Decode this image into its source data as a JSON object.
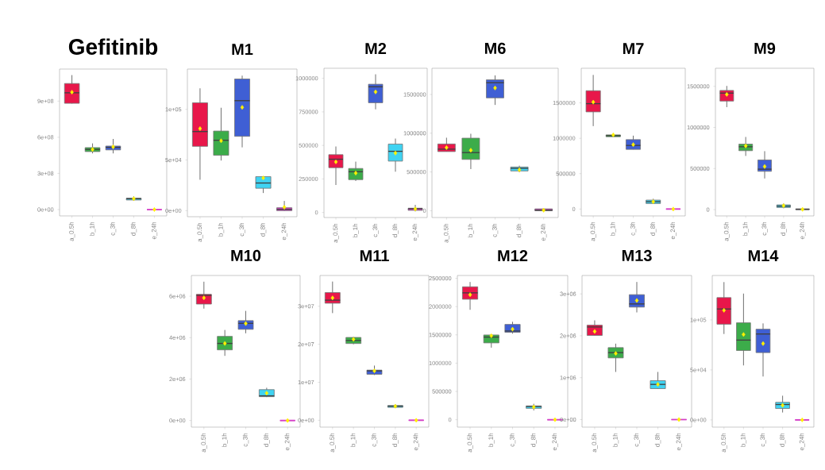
{
  "chart_data": [
    {
      "type": "box",
      "title": "Gefitinib",
      "categories": [
        "a_0.5h",
        "b_1h",
        "c_3h",
        "d_8h",
        "e_24h"
      ],
      "colors": [
        "#e8174a",
        "#3cac4a",
        "#3f5fd4",
        "#3fd3f2",
        "#d43fc6"
      ],
      "ylim": [
        -53000000,
        1166000000
      ],
      "yticks": [
        {
          "value": 0,
          "label": "0e+00"
        },
        {
          "value": 300000000,
          "label": "3e+08"
        },
        {
          "value": 600000000,
          "label": "6e+08"
        },
        {
          "value": 900000000,
          "label": "9e+08"
        }
      ],
      "boxes": [
        {
          "low": 880000000,
          "q1": 882000000,
          "median": 969000000,
          "q3": 1046000000,
          "high": 1116000000,
          "mean": 974000000
        },
        {
          "low": 466000000,
          "q1": 481000000,
          "median": 499000000,
          "q3": 514000000,
          "high": 549000000,
          "mean": 499000000
        },
        {
          "low": 466000000,
          "q1": 495000000,
          "median": 516000000,
          "q3": 527000000,
          "high": 586000000,
          "mean": 520000000
        },
        {
          "low": 72000000,
          "q1": 79000000,
          "median": 90000000,
          "q3": 94000000,
          "high": 110000000,
          "mean": 90000000
        },
        {
          "low": 0,
          "q1": 0,
          "median": 0,
          "q3": 0,
          "high": 0,
          "mean": 0
        }
      ]
    },
    {
      "type": "box",
      "title": "M1",
      "categories": [
        "a_0.5h",
        "b_1h",
        "c_3h",
        "d_8h",
        "e_24h"
      ],
      "colors": [
        "#e8174a",
        "#3cac4a",
        "#3f5fd4",
        "#3fd3f2",
        "#d43fc6"
      ],
      "ylim": [
        -6000,
        139800
      ],
      "yticks": [
        {
          "value": 0,
          "label": "0e+00"
        },
        {
          "value": 50000,
          "label": "5e+04"
        },
        {
          "value": 100000,
          "label": "1e+05"
        }
      ],
      "boxes": [
        {
          "low": 30500,
          "q1": 63500,
          "median": 78100,
          "q3": 106500,
          "high": 120800,
          "mean": 81000
        },
        {
          "low": 49500,
          "q1": 54700,
          "median": 69500,
          "q3": 78600,
          "high": 101600,
          "mean": 69000
        },
        {
          "low": 62500,
          "q1": 73400,
          "median": 108600,
          "q3": 130000,
          "high": 133300,
          "mean": 102000
        },
        {
          "low": 17400,
          "q1": 22100,
          "median": 27300,
          "q3": 33600,
          "high": 33600,
          "mean": 32300
        },
        {
          "low": 0,
          "q1": 0,
          "median": 1300,
          "q3": 2900,
          "high": 9600,
          "mean": 3400
        }
      ]
    },
    {
      "type": "box",
      "title": "M2",
      "categories": [
        "a_0.5h",
        "b_1h",
        "c_3h",
        "d_8h",
        "e_24h"
      ],
      "colors": [
        "#e8174a",
        "#3cac4a",
        "#3f5fd4",
        "#3fd3f2",
        "#d43fc6"
      ],
      "ylim": [
        -37500,
        1075000
      ],
      "yticks": [
        0,
        250000,
        500000,
        750000,
        1000000
      ],
      "boxes": [
        {
          "low": 205000,
          "q1": 334000,
          "median": 397000,
          "q3": 431000,
          "high": 492000,
          "mean": 377000
        },
        {
          "low": 235000,
          "q1": 245000,
          "median": 304000,
          "q3": 328000,
          "high": 379000,
          "mean": 294000
        },
        {
          "low": 769000,
          "q1": 818000,
          "median": 937000,
          "q3": 956000,
          "high": 1030000,
          "mean": 899000
        },
        {
          "low": 304000,
          "q1": 383000,
          "median": 456000,
          "q3": 510000,
          "high": 551000,
          "mean": 443000
        },
        {
          "low": 8000,
          "q1": 16000,
          "median": 28000,
          "q3": 32000,
          "high": 57000,
          "mean": 26000
        }
      ]
    },
    {
      "type": "box",
      "title": "M6",
      "categories": [
        "a_0.5h",
        "b_1h",
        "c_3h",
        "d_8h",
        "e_24h"
      ],
      "colors": [
        "#e8174a",
        "#3cac4a",
        "#3f5fd4",
        "#3fd3f2",
        "#d43fc6"
      ],
      "ylim": [
        -88000,
        1838000
      ],
      "yticks": [
        0,
        500000,
        1000000,
        1500000
      ],
      "boxes": [
        {
          "low": 763000,
          "q1": 763000,
          "median": 794000,
          "q3": 861000,
          "high": 942000,
          "mean": 814000
        },
        {
          "low": 537000,
          "q1": 662000,
          "median": 750000,
          "q3": 936000,
          "high": 993000,
          "mean": 780000
        },
        {
          "low": 1365000,
          "q1": 1456000,
          "median": 1652000,
          "q3": 1689000,
          "high": 1746000,
          "mean": 1584000
        },
        {
          "low": 497000,
          "q1": 513000,
          "median": 547000,
          "q3": 564000,
          "high": 581000,
          "mean": 527000
        },
        {
          "low": 0,
          "q1": 0,
          "median": 7000,
          "q3": 24000,
          "high": 24000,
          "mean": 7000
        }
      ]
    },
    {
      "type": "box",
      "title": "M7",
      "categories": [
        "a_0.5h",
        "b_1h",
        "c_3h",
        "d_8h",
        "e_24h"
      ],
      "colors": [
        "#e8174a",
        "#3cac4a",
        "#3f5fd4",
        "#3fd3f2",
        "#d43fc6"
      ],
      "ylim": [
        -97000,
        1989000
      ],
      "yticks": [
        0,
        500000,
        1000000,
        1500000
      ],
      "boxes": [
        {
          "low": 1172000,
          "q1": 1373000,
          "median": 1489000,
          "q3": 1672000,
          "high": 1895000,
          "mean": 1511000
        },
        {
          "low": 1022000,
          "q1": 1022000,
          "median": 1037000,
          "q3": 1048000,
          "high": 1048000,
          "mean": 1048000
        },
        {
          "low": 843000,
          "q1": 843000,
          "median": 899000,
          "q3": 981000,
          "high": 1037000,
          "mean": 910000
        },
        {
          "low": 71000,
          "q1": 78000,
          "median": 104000,
          "q3": 127000,
          "high": 146000,
          "mean": 104000
        },
        {
          "low": 0,
          "q1": 0,
          "median": 0,
          "q3": 0,
          "high": 0,
          "mean": 0
        }
      ]
    },
    {
      "type": "box",
      "title": "M9",
      "categories": [
        "a_0.5h",
        "b_1h",
        "c_3h",
        "d_8h",
        "e_24h"
      ],
      "colors": [
        "#e8174a",
        "#3cac4a",
        "#3f5fd4",
        "#3fd3f2",
        "#d43fc6"
      ],
      "ylim": [
        -77000,
        1720000
      ],
      "yticks": [
        0,
        500000,
        1000000,
        1500000
      ],
      "boxes": [
        {
          "low": 1247000,
          "q1": 1321000,
          "median": 1418000,
          "q3": 1450000,
          "high": 1505000,
          "mean": 1402000
        },
        {
          "low": 653000,
          "q1": 717000,
          "median": 765000,
          "q3": 797000,
          "high": 884000,
          "mean": 775000
        },
        {
          "low": 379000,
          "q1": 466000,
          "median": 492000,
          "q3": 604000,
          "high": 711000,
          "mean": 524000
        },
        {
          "low": 16000,
          "q1": 26000,
          "median": 42000,
          "q3": 58000,
          "high": 74000,
          "mean": 48000
        },
        {
          "low": 0,
          "q1": 0,
          "median": 3000,
          "q3": 10000,
          "high": 10000,
          "mean": 3000
        }
      ]
    },
    {
      "type": "box",
      "title": "M10",
      "categories": [
        "a_0.5h",
        "b_1h",
        "c_3h",
        "d_8h",
        "e_24h"
      ],
      "colors": [
        "#e8174a",
        "#3cac4a",
        "#3f5fd4",
        "#3fd3f2",
        "#d43fc6"
      ],
      "ylim": [
        -320000,
        7000000
      ],
      "yticks": [
        {
          "value": 0,
          "label": "0e+00"
        },
        {
          "value": 2000000,
          "label": "2e+06"
        },
        {
          "value": 4000000,
          "label": "4e+06"
        },
        {
          "value": 6000000,
          "label": "6e+06"
        }
      ],
      "boxes": [
        {
          "low": 5400000,
          "q1": 5620000,
          "median": 6040000,
          "q3": 6090000,
          "high": 6700000,
          "mean": 5920000
        },
        {
          "low": 3120000,
          "q1": 3410000,
          "median": 3720000,
          "q3": 4060000,
          "high": 4370000,
          "mean": 3720000
        },
        {
          "low": 4210000,
          "q1": 4400000,
          "median": 4690000,
          "q3": 4820000,
          "high": 5290000,
          "mean": 4680000
        },
        {
          "low": 1130000,
          "q1": 1150000,
          "median": 1190000,
          "q3": 1490000,
          "high": 1580000,
          "mean": 1320000
        },
        {
          "low": 0,
          "q1": 0,
          "median": 0,
          "q3": 0,
          "high": 0,
          "mean": 0
        }
      ]
    },
    {
      "type": "box",
      "title": "M11",
      "categories": [
        "a_0.5h",
        "b_1h",
        "c_3h",
        "d_8h",
        "e_24h"
      ],
      "colors": [
        "#e8174a",
        "#3cac4a",
        "#3f5fd4",
        "#3fd3f2",
        "#d43fc6"
      ],
      "ylim": [
        -1800000,
        38100000
      ],
      "yticks": [
        {
          "value": 0,
          "label": "0e+00"
        },
        {
          "value": 10000000,
          "label": "1e+07"
        },
        {
          "value": 20000000,
          "label": "2e+07"
        },
        {
          "value": 30000000,
          "label": "3e+07"
        }
      ],
      "boxes": [
        {
          "low": 28200000,
          "q1": 30800000,
          "median": 31600000,
          "q3": 33600000,
          "high": 36500000,
          "mean": 32200000
        },
        {
          "low": 20000000,
          "q1": 20200000,
          "median": 21000000,
          "q3": 21800000,
          "high": 21900000,
          "mean": 21300000
        },
        {
          "low": 11900000,
          "q1": 12100000,
          "median": 13000000,
          "q3": 13200000,
          "high": 14400000,
          "mean": 13000000
        },
        {
          "low": 3200000,
          "q1": 3400000,
          "median": 3700000,
          "q3": 3900000,
          "high": 4200000,
          "mean": 3700000
        },
        {
          "low": 0,
          "q1": 0,
          "median": 0,
          "q3": 0,
          "high": 0,
          "mean": 0
        }
      ]
    },
    {
      "type": "box",
      "title": "M12",
      "categories": [
        "a_0.5h",
        "b_1h",
        "c_3h",
        "d_8h",
        "e_24h"
      ],
      "colors": [
        "#e8174a",
        "#3cac4a",
        "#3f5fd4",
        "#3fd3f2",
        "#d43fc6"
      ],
      "ylim": [
        -131000,
        2550000
      ],
      "yticks": [
        0,
        500000,
        1000000,
        1500000,
        2000000,
        2500000
      ],
      "boxes": [
        {
          "low": 1943000,
          "q1": 2130000,
          "median": 2243000,
          "q3": 2350000,
          "high": 2435000,
          "mean": 2210000
        },
        {
          "low": 1274000,
          "q1": 1358000,
          "median": 1461000,
          "q3": 1498000,
          "high": 1498000,
          "mean": 1484000
        },
        {
          "low": 1522000,
          "q1": 1545000,
          "median": 1568000,
          "q3": 1685000,
          "high": 1732000,
          "mean": 1601000
        },
        {
          "low": 164000,
          "q1": 201000,
          "median": 234000,
          "q3": 243000,
          "high": 281000,
          "mean": 225000
        },
        {
          "low": 0,
          "q1": 0,
          "median": 0,
          "q3": 0,
          "high": 0,
          "mean": 0
        }
      ]
    },
    {
      "type": "box",
      "title": "M13",
      "categories": [
        "a_0.5h",
        "b_1h",
        "c_3h",
        "d_8h",
        "e_24h"
      ],
      "colors": [
        "#e8174a",
        "#3cac4a",
        "#3f5fd4",
        "#3fd3f2",
        "#d43fc6"
      ],
      "ylim": [
        -180000,
        3440000
      ],
      "yticks": [
        {
          "value": 0,
          "label": "0e+00"
        },
        {
          "value": 1000000,
          "label": "1e+06"
        },
        {
          "value": 2000000,
          "label": "2e+06"
        },
        {
          "value": 3000000,
          "label": "3e+06"
        }
      ],
      "boxes": [
        {
          "low": 2009000,
          "q1": 2009000,
          "median": 2211000,
          "q3": 2255000,
          "high": 2369000,
          "mean": 2104000
        },
        {
          "low": 1137000,
          "q1": 1472000,
          "median": 1598000,
          "q3": 1718000,
          "high": 1813000,
          "mean": 1579000
        },
        {
          "low": 2558000,
          "q1": 2685000,
          "median": 2761000,
          "q3": 2982000,
          "high": 3285000,
          "mean": 2843000
        },
        {
          "low": 739000,
          "q1": 739000,
          "median": 840000,
          "q3": 929000,
          "high": 1137000,
          "mean": 840000
        },
        {
          "low": 0,
          "q1": 0,
          "median": 0,
          "q3": 0,
          "high": 0,
          "mean": 0
        }
      ]
    },
    {
      "type": "box",
      "title": "M14",
      "categories": [
        "a_0.5h",
        "b_1h",
        "c_3h",
        "d_8h",
        "e_24h"
      ],
      "colors": [
        "#e8174a",
        "#3cac4a",
        "#3f5fd4",
        "#3fd3f2",
        "#d43fc6"
      ],
      "ylim": [
        -7200,
        144400
      ],
      "yticks": [
        {
          "value": 0,
          "label": "0e+00"
        },
        {
          "value": 50000,
          "label": "5e+04"
        },
        {
          "value": 100000,
          "label": "1e+05"
        }
      ],
      "boxes": [
        {
          "low": 85900,
          "q1": 95700,
          "median": 110900,
          "q3": 122300,
          "high": 137800,
          "mean": 109600
        },
        {
          "low": 54500,
          "q1": 69400,
          "median": 79800,
          "q3": 97100,
          "high": 126300,
          "mean": 85400
        },
        {
          "low": 43400,
          "q1": 67300,
          "median": 85900,
          "q3": 90700,
          "high": 96500,
          "mean": 76300
        },
        {
          "low": 7400,
          "q1": 11400,
          "median": 15400,
          "q3": 17600,
          "high": 24200,
          "mean": 14600
        },
        {
          "low": 0,
          "q1": 0,
          "median": 0,
          "q3": 0,
          "high": 0,
          "mean": 0
        }
      ]
    }
  ]
}
